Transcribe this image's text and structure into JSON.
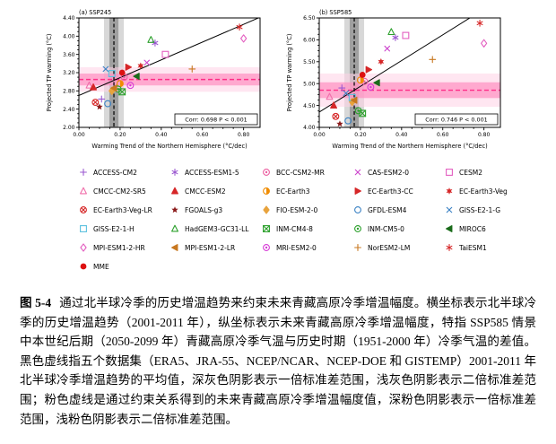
{
  "caption": {
    "label": "图 5-4",
    "text": "通过北半球冷季的历史增温趋势来约束未来青藏高原冷季增温幅度。横坐标表示北半球冷季的历史增温趋势（2001-2011 年），纵坐标表示未来青藏高原冷季增温幅度，特指 SSP585 情景中本世纪后期（2050-2099 年）青藏高原冷季气温与历史时期（1951-2000 年）冷季气温的差值。黑色虚线指五个数据集（ERA5、JRA-55、NCEP/NCAR、NCEP-DOE 和 GISTEMP）2001-2011 年北半球冷季增温趋势的平均值，深灰色阴影表示一倍标准差范围，浅灰色阴影表示二倍标准差范围；粉色虚线是通过约束关系得到的未来青藏高原冷季增温幅度值，深粉色阴影表示一倍标准差范围，浅粉色阴影表示二倍标准差范围。"
  },
  "chart_data": {
    "type": "scatter",
    "panels": [
      {
        "id": "a",
        "title": "(a) SSP245",
        "xlabel": "Warming Trend of the Northern Hemisphere (°C/dec)",
        "ylabel": "Projected TP warming (°C)",
        "xlim": [
          0,
          0.88
        ],
        "ylim": [
          2.0,
          4.4
        ],
        "xticks": [
          0.0,
          0.2,
          0.4,
          0.6,
          0.8
        ],
        "yticks": [
          2.0,
          2.4,
          2.8,
          3.2,
          3.6,
          4.0,
          4.4
        ],
        "corr_label": "Corr: 0.698  P < 0.001",
        "observed_trend": {
          "mean": 0.17,
          "sd1": 0.022,
          "sd2": 0.048
        },
        "constrained": {
          "mean": 3.05,
          "sd1": 0.13,
          "sd2": 0.27
        },
        "regression": {
          "intercept": 2.7,
          "slope": 1.95
        },
        "ykey": "y_ssp245"
      },
      {
        "id": "b",
        "title": "(b) SSP585",
        "xlabel": "Warming Trend of the Northern Hemisphere (°C/dec)",
        "ylabel": "Projected TP warming (°C)",
        "xlim": [
          0,
          0.88
        ],
        "ylim": [
          4.0,
          6.5
        ],
        "xticks": [
          0.0,
          0.2,
          0.4,
          0.6,
          0.8
        ],
        "yticks": [
          4.0,
          4.5,
          5.0,
          5.5,
          6.0,
          6.5
        ],
        "corr_label": "Corr: 0.746  P < 0.001",
        "observed_trend": {
          "mean": 0.17,
          "sd1": 0.022,
          "sd2": 0.048
        },
        "constrained": {
          "mean": 4.85,
          "sd1": 0.18,
          "sd2": 0.38
        },
        "regression": {
          "intercept": 4.35,
          "slope": 2.94
        },
        "ykey": "y_ssp585"
      }
    ],
    "style": {
      "observed_line": "#000000",
      "band_gray_dark": "#a0a0a0",
      "band_gray_light": "#d8d8d8",
      "constrained_line": "#ff2d87",
      "band_pink_dark": "#ff8fc0",
      "band_pink_light": "#ffd2e6",
      "regression_line": "#000000"
    },
    "models": [
      {
        "name": "ACCESS-CM2",
        "marker": "plus",
        "color": "#9b59d0",
        "x": 0.11,
        "y_ssp245": 2.62,
        "y_ssp585": 4.9
      },
      {
        "name": "ACCESS-ESM1-5",
        "marker": "asterisk",
        "color": "#9b59d0",
        "x": 0.37,
        "y_ssp245": 3.85,
        "y_ssp585": 6.05
      },
      {
        "name": "BCC-CSM2-MR",
        "marker": "circle-dot",
        "color": "#ec5fa1",
        "x": 0.22,
        "y_ssp245": 3.1,
        "y_ssp585": 5.05
      },
      {
        "name": "CAS-ESM2-0",
        "marker": "x",
        "color": "#cc44cc",
        "x": 0.33,
        "y_ssp245": 3.42,
        "y_ssp585": 5.8
      },
      {
        "name": "CESM2",
        "marker": "square",
        "color": "#e35fc0",
        "x": 0.42,
        "y_ssp245": 3.6,
        "y_ssp585": 6.1
      },
      {
        "name": "CMCC-CM2-SR5",
        "marker": "triangle",
        "color": "#f06eaa",
        "x": 0.05,
        "y_ssp245": 2.92,
        "y_ssp585": 4.7
      },
      {
        "name": "CMCC-ESM2",
        "marker": "triangle-fill",
        "color": "#d62728",
        "x": 0.07,
        "y_ssp245": 2.88,
        "y_ssp585": 4.5
      },
      {
        "name": "EC-Earth3",
        "marker": "circle-half",
        "color": "#f08c00",
        "x": 0.2,
        "y_ssp245": 2.96,
        "y_ssp585": 5.08
      },
      {
        "name": "EC-Earth3-CC",
        "marker": "triangle-right",
        "color": "#d62728",
        "x": 0.24,
        "y_ssp245": 3.32,
        "y_ssp585": 5.32
      },
      {
        "name": "EC-Earth3-Veg",
        "marker": "star6",
        "color": "#d62728",
        "x": 0.3,
        "y_ssp245": 3.35,
        "y_ssp585": 5.5
      },
      {
        "name": "EC-Earth3-Veg-LR",
        "marker": "circle-x",
        "color": "#d62728",
        "x": 0.08,
        "y_ssp245": 2.55,
        "y_ssp585": 4.25
      },
      {
        "name": "FGOALS-g3",
        "marker": "star5",
        "color": "#8b1a1a",
        "x": 0.1,
        "y_ssp245": 2.45,
        "y_ssp585": 4.08
      },
      {
        "name": "FIO-ESM-2-0",
        "marker": "diamond-fill",
        "color": "#e8a33d",
        "x": 0.16,
        "y_ssp245": 2.8,
        "y_ssp585": 4.58
      },
      {
        "name": "GFDL-ESM4",
        "marker": "circle",
        "color": "#3b82c4",
        "x": 0.14,
        "y_ssp245": 2.52,
        "y_ssp585": 4.15
      },
      {
        "name": "GISS-E2-1-G",
        "marker": "x",
        "color": "#3b82c4",
        "x": 0.13,
        "y_ssp245": 3.28,
        "y_ssp585": 4.78
      },
      {
        "name": "GISS-E2-1-H",
        "marker": "square",
        "color": "#5bc0de",
        "x": 0.16,
        "y_ssp245": 3.18,
        "y_ssp585": 4.68
      },
      {
        "name": "HadGEM3-GC31-LL",
        "marker": "triangle",
        "color": "#2ca02c",
        "x": 0.35,
        "y_ssp245": 3.92,
        "y_ssp585": 6.18
      },
      {
        "name": "INM-CM4-8",
        "marker": "square-x",
        "color": "#2ca02c",
        "x": 0.21,
        "y_ssp245": 2.78,
        "y_ssp585": 4.32
      },
      {
        "name": "INM-CM5-0",
        "marker": "circle-dot",
        "color": "#2ca02c",
        "x": 0.19,
        "y_ssp245": 2.84,
        "y_ssp585": 4.38
      },
      {
        "name": "MIROC6",
        "marker": "triangle-left",
        "color": "#1a6b1a",
        "x": 0.28,
        "y_ssp245": 3.12,
        "y_ssp585": 5.02
      },
      {
        "name": "MPI-ESM1-2-HR",
        "marker": "diamond",
        "color": "#e35fc0",
        "x": 0.8,
        "y_ssp245": 3.95,
        "y_ssp585": 5.92
      },
      {
        "name": "MPI-ESM1-2-LR",
        "marker": "triangle-left",
        "color": "#c87820",
        "x": 0.17,
        "y_ssp245": 2.86,
        "y_ssp585": 4.62
      },
      {
        "name": "MRI-ESM2-0",
        "marker": "circle-dot",
        "color": "#d63ad6",
        "x": 0.25,
        "y_ssp245": 2.92,
        "y_ssp585": 4.92
      },
      {
        "name": "NorESM2-LM",
        "marker": "plus",
        "color": "#c87820",
        "x": 0.55,
        "y_ssp245": 3.28,
        "y_ssp585": 5.55
      },
      {
        "name": "TaiESM1",
        "marker": "asterisk",
        "color": "#d62728",
        "x": 0.78,
        "y_ssp245": 4.2,
        "y_ssp585": 6.38
      }
    ],
    "mme": {
      "name": "MME",
      "marker": "dot",
      "color": "#dd1111",
      "x": 0.21,
      "y_ssp245": 3.2,
      "y_ssp585": 5.2
    }
  }
}
